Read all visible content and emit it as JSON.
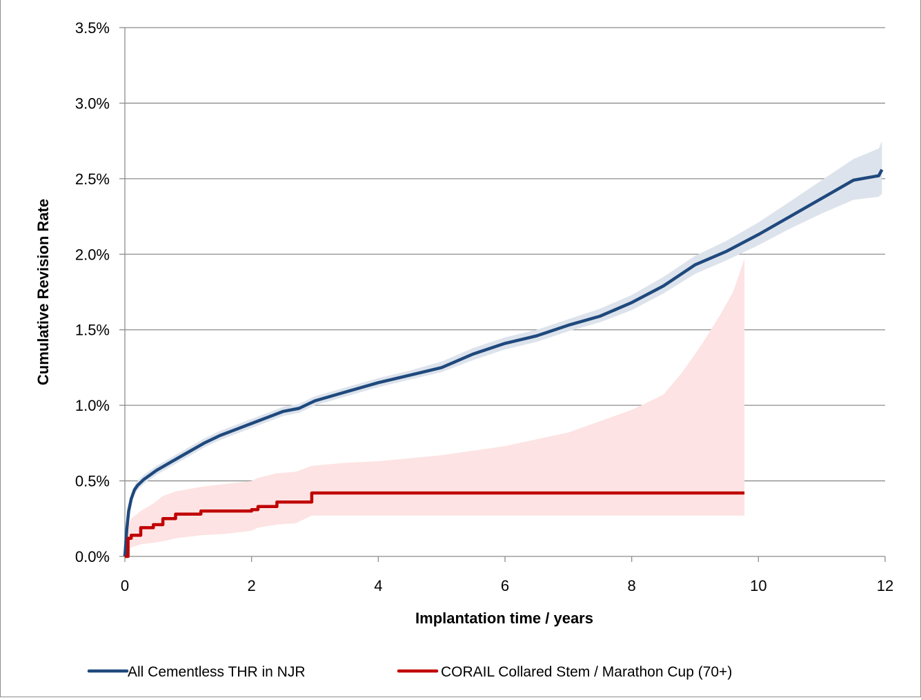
{
  "chart_data": {
    "type": "line",
    "title": "",
    "xlabel": "Implantation time  / years",
    "ylabel": "Cumulative Revision Rate",
    "xlim": [
      0,
      12
    ],
    "ylim": [
      0,
      3.5
    ],
    "x_ticks": [
      0,
      2,
      4,
      6,
      8,
      10,
      12
    ],
    "x_tick_labels": [
      "0",
      "2",
      "4",
      "6",
      "8",
      "10",
      "12"
    ],
    "y_ticks": [
      0,
      0.5,
      1.0,
      1.5,
      2.0,
      2.5,
      3.0,
      3.5
    ],
    "y_tick_labels": [
      "0.0%",
      "0.5%",
      "1.0%",
      "1.5%",
      "2.0%",
      "2.5%",
      "3.0%",
      "3.5%"
    ],
    "grid": "horizontal",
    "legend_position": "bottom",
    "series": [
      {
        "name": "All Cementless THR in NJR",
        "color": "#1f497d",
        "band_color": "#dde3ec",
        "x": [
          0,
          0.03,
          0.06,
          0.1,
          0.15,
          0.2,
          0.3,
          0.5,
          0.75,
          1.0,
          1.25,
          1.5,
          1.75,
          2.0,
          2.25,
          2.5,
          2.75,
          3.0,
          3.5,
          4.0,
          4.5,
          5.0,
          5.5,
          6.0,
          6.5,
          7.0,
          7.5,
          8.0,
          8.5,
          9.0,
          9.5,
          10.0,
          10.5,
          11.0,
          11.5,
          11.9,
          11.95
        ],
        "y": [
          0,
          0.18,
          0.3,
          0.38,
          0.44,
          0.47,
          0.51,
          0.57,
          0.63,
          0.69,
          0.75,
          0.8,
          0.84,
          0.88,
          0.92,
          0.96,
          0.98,
          1.03,
          1.09,
          1.15,
          1.2,
          1.25,
          1.34,
          1.41,
          1.46,
          1.53,
          1.59,
          1.68,
          1.79,
          1.93,
          2.02,
          2.13,
          2.25,
          2.37,
          2.49,
          2.52,
          2.56
        ],
        "lower": [
          0,
          0.15,
          0.26,
          0.35,
          0.41,
          0.44,
          0.48,
          0.54,
          0.6,
          0.66,
          0.72,
          0.77,
          0.81,
          0.85,
          0.89,
          0.93,
          0.95,
          1.0,
          1.06,
          1.12,
          1.17,
          1.22,
          1.3,
          1.37,
          1.42,
          1.49,
          1.55,
          1.63,
          1.74,
          1.87,
          1.96,
          2.06,
          2.17,
          2.27,
          2.36,
          2.38,
          2.4
        ],
        "upper": [
          0,
          0.21,
          0.34,
          0.41,
          0.47,
          0.5,
          0.54,
          0.6,
          0.66,
          0.72,
          0.78,
          0.83,
          0.87,
          0.91,
          0.95,
          0.99,
          1.01,
          1.06,
          1.12,
          1.18,
          1.23,
          1.29,
          1.38,
          1.45,
          1.5,
          1.57,
          1.64,
          1.73,
          1.85,
          1.99,
          2.09,
          2.21,
          2.35,
          2.49,
          2.63,
          2.7,
          2.75
        ]
      },
      {
        "name": "CORAIL Collared Stem / Marathon Cup (70+)",
        "color": "#c00000",
        "band_color": "#fde3e3",
        "x": [
          0,
          0.05,
          0.1,
          0.25,
          0.45,
          0.6,
          0.8,
          1.2,
          1.6,
          2.0,
          2.1,
          2.4,
          2.7,
          2.95,
          3.5,
          4.0,
          5.0,
          6.0,
          7.0,
          8.0,
          8.5,
          8.8,
          9.1,
          9.4,
          9.6,
          9.78
        ],
        "y": [
          0,
          0.12,
          0.14,
          0.19,
          0.21,
          0.25,
          0.28,
          0.3,
          0.3,
          0.31,
          0.33,
          0.36,
          0.36,
          0.42,
          0.42,
          0.42,
          0.42,
          0.42,
          0.42,
          0.42,
          0.42,
          0.42,
          0.42,
          0.42,
          0.42,
          0.42
        ],
        "lower": [
          0,
          0.04,
          0.06,
          0.08,
          0.09,
          0.1,
          0.12,
          0.14,
          0.15,
          0.17,
          0.19,
          0.21,
          0.22,
          0.27,
          0.27,
          0.27,
          0.27,
          0.27,
          0.27,
          0.27,
          0.27,
          0.27,
          0.27,
          0.27,
          0.27,
          0.27
        ],
        "upper": [
          0,
          0.2,
          0.25,
          0.3,
          0.35,
          0.4,
          0.43,
          0.46,
          0.48,
          0.5,
          0.52,
          0.55,
          0.56,
          0.6,
          0.62,
          0.63,
          0.67,
          0.73,
          0.82,
          0.97,
          1.07,
          1.22,
          1.4,
          1.6,
          1.75,
          1.97
        ]
      }
    ]
  }
}
